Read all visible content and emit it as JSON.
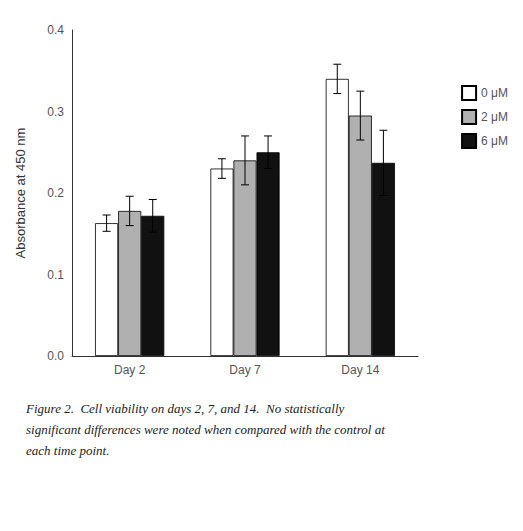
{
  "chart_data": {
    "type": "bar",
    "categories": [
      "Day 2",
      "Day 7",
      "Day 14"
    ],
    "series": [
      {
        "name": "0 μM",
        "color": "white",
        "values": [
          0.163,
          0.23,
          0.34
        ],
        "errors": [
          0.01,
          0.012,
          0.018
        ]
      },
      {
        "name": "2 μM",
        "color": "#b0b0b0",
        "values": [
          0.178,
          0.24,
          0.295
        ],
        "errors": [
          0.018,
          0.03,
          0.03
        ]
      },
      {
        "name": "6 μM",
        "color": "#111111",
        "values": [
          0.172,
          0.25,
          0.237
        ],
        "errors": [
          0.02,
          0.02,
          0.04
        ]
      }
    ],
    "y_label": "Absorbance at 450 nm",
    "ylim": [
      0.0,
      0.4
    ],
    "yticks": [
      {
        "value": 0.0,
        "label": "0.0"
      },
      0.1,
      0.2,
      0.3,
      0.4
    ],
    "grid": false,
    "legend": "right",
    "annotations": [
      "Figure 2.  Cell viability on days 2, 7, and 14.  No statistically",
      "significant differences were noted when compared with the control at",
      "each time point."
    ]
  }
}
